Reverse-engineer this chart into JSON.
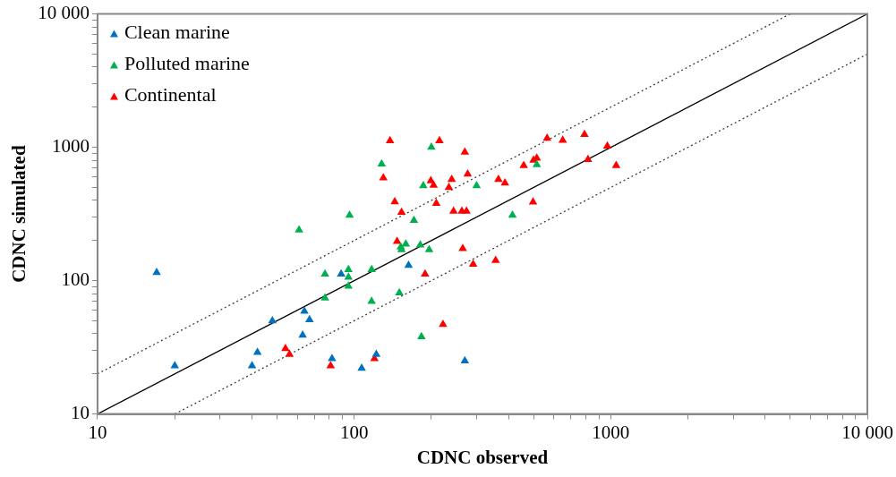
{
  "chart_data": {
    "type": "scatter",
    "xlabel": "CDNC observed",
    "ylabel": "CDNC simulated",
    "log": "xy",
    "grid": false,
    "legend": "top left",
    "marker": "triangle",
    "xlim": [
      10,
      10000
    ],
    "ylim": [
      10,
      10000
    ],
    "xticks": [
      10,
      {
        "value": 20,
        "label": null
      },
      {
        "value": 30,
        "label": null
      },
      {
        "value": 40,
        "label": null
      },
      {
        "value": 50,
        "label": null
      },
      {
        "value": 60,
        "label": null
      },
      {
        "value": 70,
        "label": null
      },
      {
        "value": 80,
        "label": null
      },
      {
        "value": 90,
        "label": null
      },
      100,
      {
        "value": 200,
        "label": null
      },
      {
        "value": 300,
        "label": null
      },
      {
        "value": 400,
        "label": null
      },
      {
        "value": 500,
        "label": null
      },
      {
        "value": 600,
        "label": null
      },
      {
        "value": 700,
        "label": null
      },
      {
        "value": 800,
        "label": null
      },
      {
        "value": 900,
        "label": null
      },
      1000,
      {
        "value": 2000,
        "label": null
      },
      {
        "value": 3000,
        "label": null
      },
      {
        "value": 4000,
        "label": null
      },
      {
        "value": 5000,
        "label": null
      },
      {
        "value": 6000,
        "label": null
      },
      {
        "value": 7000,
        "label": null
      },
      {
        "value": 8000,
        "label": null
      },
      {
        "value": 9000,
        "label": null
      },
      {
        "value": 10000,
        "label": "10 000"
      }
    ],
    "yticks": [
      10,
      {
        "value": 20,
        "label": null
      },
      {
        "value": 30,
        "label": null
      },
      {
        "value": 40,
        "label": null
      },
      {
        "value": 50,
        "label": null
      },
      {
        "value": 60,
        "label": null
      },
      {
        "value": 70,
        "label": null
      },
      {
        "value": 80,
        "label": null
      },
      {
        "value": 90,
        "label": null
      },
      100,
      {
        "value": 200,
        "label": null
      },
      {
        "value": 300,
        "label": null
      },
      {
        "value": 400,
        "label": null
      },
      {
        "value": 500,
        "label": null
      },
      {
        "value": 600,
        "label": null
      },
      {
        "value": 700,
        "label": null
      },
      {
        "value": 800,
        "label": null
      },
      {
        "value": 900,
        "label": null
      },
      1000,
      {
        "value": 2000,
        "label": null
      },
      {
        "value": 3000,
        "label": null
      },
      {
        "value": 4000,
        "label": null
      },
      {
        "value": 5000,
        "label": null
      },
      {
        "value": 6000,
        "label": null
      },
      {
        "value": 7000,
        "label": null
      },
      {
        "value": 8000,
        "label": null
      },
      {
        "value": 9000,
        "label": null
      },
      {
        "value": 10000,
        "label": "10 000"
      }
    ],
    "series": [
      {
        "type": "line",
        "marker": "none",
        "color": "#000000",
        "line_style": "solid",
        "x": [
          10,
          10000
        ],
        "values": [
          10,
          10000
        ]
      },
      {
        "type": "line",
        "marker": "none",
        "color": "#404040",
        "line_style": "dotted",
        "x": [
          10,
          5000
        ],
        "values": [
          20,
          10000
        ]
      },
      {
        "type": "line",
        "marker": "none",
        "color": "#404040",
        "line_style": "dotted",
        "x": [
          20,
          10000
        ],
        "values": [
          10,
          5000
        ]
      },
      {
        "name": "Clean marine",
        "color": "#0070c0",
        "x": [
          17,
          20,
          48,
          42,
          40,
          64,
          67,
          63,
          82,
          89,
          107,
          122,
          163,
          270
        ],
        "values": [
          115,
          23,
          50,
          29,
          23,
          59,
          51,
          39,
          26,
          112,
          22,
          28,
          130,
          25
        ]
      },
      {
        "name": "Polluted marine",
        "color": "#00b050",
        "x": [
          61,
          96,
          77,
          95,
          95,
          95,
          77,
          117,
          117,
          150,
          183,
          128,
          200,
          186,
          300,
          171,
          414,
          152,
          159,
          153,
          181,
          196,
          515
        ],
        "values": [
          240,
          310,
          112,
          121,
          106,
          91,
          74,
          121,
          70,
          81,
          38,
          750,
          1000,
          515,
          515,
          283,
          310,
          179,
          188,
          171,
          185,
          171,
          740
        ]
      },
      {
        "name": "Continental",
        "color": "#ff0000",
        "x": [
          54,
          56,
          81,
          120,
          222,
          189,
          138,
          215,
          270,
          130,
          199,
          204,
          240,
          234,
          277,
          365,
          387,
          144,
          153,
          209,
          244,
          263,
          274,
          498,
          147,
          265,
          291,
          356,
          458,
          500,
          515,
          565,
          650,
          790,
          970,
          815,
          1050
        ],
        "values": [
          31,
          28,
          23,
          26,
          47,
          112,
          1120,
          1120,
          920,
          590,
          560,
          520,
          575,
          500,
          630,
          575,
          540,
          390,
          326,
          380,
          332,
          332,
          332,
          388,
          197,
          174,
          133,
          142,
          730,
          800,
          830,
          1170,
          1130,
          1250,
          1020,
          810,
          730
        ]
      }
    ]
  }
}
